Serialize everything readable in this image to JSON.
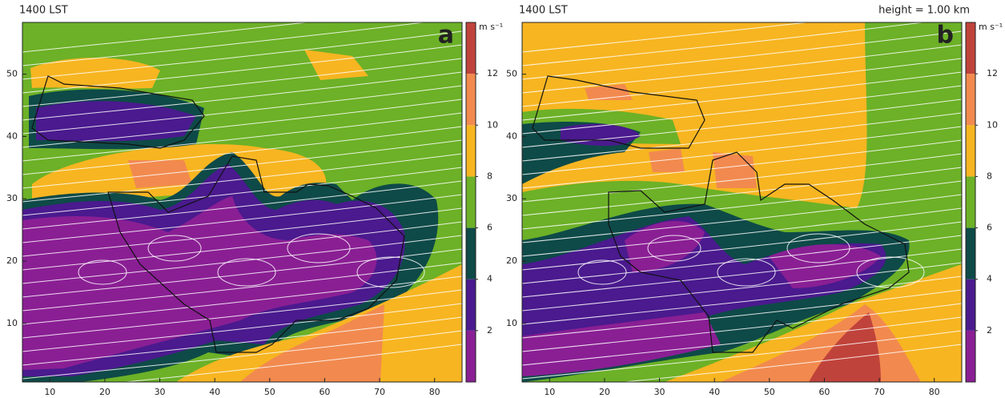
{
  "chart_data": [
    {
      "type": "contour",
      "title": "1400 LST",
      "annotation": "a",
      "xlim": [
        5,
        85
      ],
      "xticks": [
        10,
        20,
        30,
        40,
        50,
        60,
        70,
        80
      ],
      "ylim": [
        0.6,
        58.3
      ],
      "yticks": [
        10,
        20,
        30,
        40,
        50
      ],
      "colorbar": {
        "label": "m s⁻¹",
        "clim": [
          0,
          14
        ],
        "cticks": [
          2,
          4,
          6,
          8,
          10,
          12
        ],
        "colors": [
          "#8a1f94",
          "#4a1a8e",
          "#0e4a48",
          "#6cb127",
          "#f7b521",
          "#f28a4f",
          "#c0433b"
        ]
      }
    },
    {
      "type": "contour",
      "title": "1400 LST",
      "subtitle": "height =  1.00 km",
      "annotation": "b",
      "xlim": [
        5,
        85
      ],
      "xticks": [
        10,
        20,
        30,
        40,
        50,
        60,
        70,
        80
      ],
      "ylim": [
        0.6,
        58.3
      ],
      "yticks": [
        10,
        20,
        30,
        40,
        50
      ],
      "colorbar": {
        "label": "m s⁻¹",
        "clim": [
          0,
          14
        ],
        "cticks": [
          2,
          4,
          6,
          8,
          10,
          12
        ],
        "colors": [
          "#8a1f94",
          "#4a1a8e",
          "#0e4a48",
          "#6cb127",
          "#f7b521",
          "#f28a4f",
          "#c0433b"
        ]
      }
    }
  ]
}
